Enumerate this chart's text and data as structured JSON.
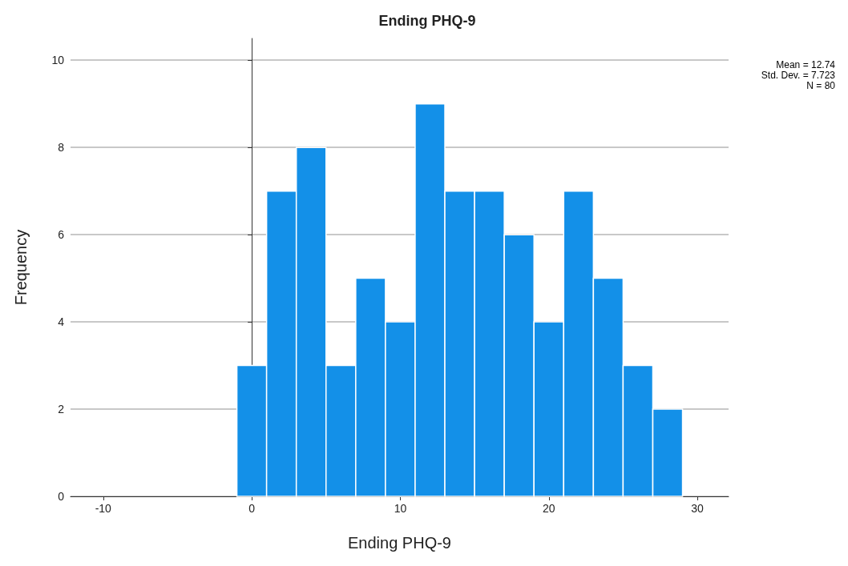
{
  "chart_data": {
    "type": "histogram",
    "title": "Ending PHQ-9",
    "xlabel": "Ending PHQ-9",
    "ylabel": "Frequency",
    "bins": [
      -1,
      1,
      3,
      5,
      7,
      9,
      11,
      13,
      15,
      17,
      19,
      21,
      23,
      25,
      27,
      29
    ],
    "values": [
      3,
      7,
      8,
      3,
      5,
      4,
      9,
      7,
      7,
      6,
      4,
      7,
      5,
      3,
      2
    ],
    "color": "#1390e8",
    "xlim": [
      -12.2,
      32.1
    ],
    "xticks": [
      -10,
      0,
      10,
      20,
      30
    ],
    "ylim": [
      0,
      10.5
    ],
    "yticks": [
      0,
      2,
      4,
      6,
      8,
      10
    ],
    "grid": "y",
    "annotations": [
      "Mean = 12.74",
      "Std. Dev. = 7.723",
      "N = 80"
    ]
  }
}
